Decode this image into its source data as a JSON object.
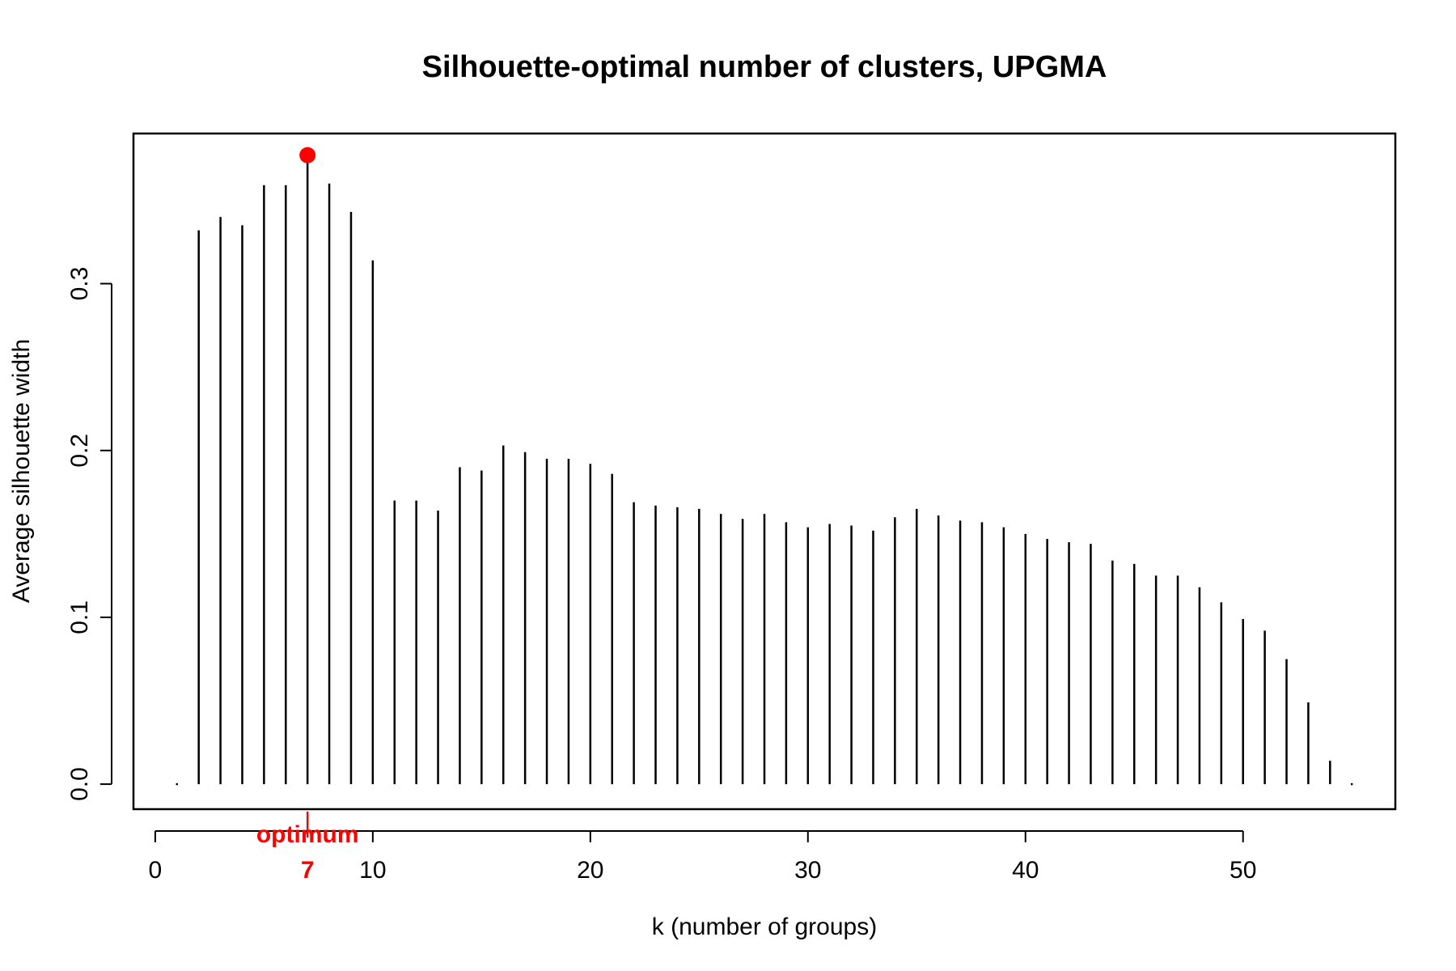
{
  "chart_data": {
    "type": "bar",
    "style": "histogram-lines",
    "title": "Silhouette-optimal number of clusters, UPGMA",
    "xlabel": "k (number of groups)",
    "ylabel": "Average silhouette width",
    "xlim": [
      -1,
      57
    ],
    "ylim": [
      -0.015,
      0.39
    ],
    "x_ticks": [
      0,
      10,
      20,
      30,
      40,
      50
    ],
    "y_ticks": [
      0.0,
      0.1,
      0.2,
      0.3
    ],
    "y_tick_labels": [
      "0.0",
      "0.1",
      "0.2",
      "0.3"
    ],
    "grid": false,
    "bar_color": "#000000",
    "highlight_color": "#ff0000",
    "x": [
      1,
      2,
      3,
      4,
      5,
      6,
      7,
      8,
      9,
      10,
      11,
      12,
      13,
      14,
      15,
      16,
      17,
      18,
      19,
      20,
      21,
      22,
      23,
      24,
      25,
      26,
      27,
      28,
      29,
      30,
      31,
      32,
      33,
      34,
      35,
      36,
      37,
      38,
      39,
      40,
      41,
      42,
      43,
      44,
      45,
      46,
      47,
      48,
      49,
      50,
      51,
      52,
      53,
      54,
      55
    ],
    "values": [
      0.0,
      0.332,
      0.34,
      0.335,
      0.359,
      0.359,
      0.377,
      0.36,
      0.343,
      0.314,
      0.17,
      0.17,
      0.164,
      0.19,
      0.188,
      0.203,
      0.199,
      0.195,
      0.195,
      0.192,
      0.186,
      0.169,
      0.167,
      0.166,
      0.165,
      0.162,
      0.159,
      0.162,
      0.157,
      0.154,
      0.156,
      0.155,
      0.152,
      0.16,
      0.165,
      0.161,
      0.158,
      0.157,
      0.154,
      0.15,
      0.147,
      0.145,
      0.144,
      0.134,
      0.132,
      0.125,
      0.125,
      0.118,
      0.109,
      0.099,
      0.092,
      0.075,
      0.049,
      0.014,
      0.0
    ],
    "optimum": {
      "k": 7,
      "value": 0.377,
      "label": "optimum",
      "k_label": "7"
    }
  }
}
